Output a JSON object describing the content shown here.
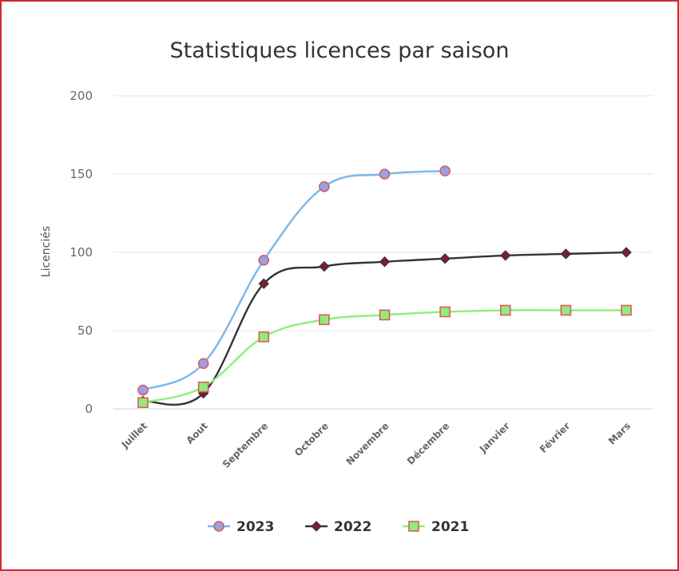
{
  "chart_data": {
    "type": "line",
    "title": "Statistiques licences par saison",
    "ylabel": "Licenciés",
    "xlabel": "",
    "categories": [
      "Juillet",
      "Aout",
      "Septembre",
      "Octobre",
      "Novembre",
      "Décembre",
      "Janvier",
      "Février",
      "Mars"
    ],
    "ylim": [
      0,
      200
    ],
    "yticks": [
      0,
      50,
      100,
      150,
      200
    ],
    "grid": true,
    "legend": "bottom",
    "series": [
      {
        "name": "2023",
        "color": "#7cb5ec",
        "marker": "circle",
        "marker_fill": "#8fa4ea",
        "marker_stroke": "#e05a5a",
        "values": [
          12,
          29,
          95,
          142,
          150,
          152,
          null,
          null,
          null
        ]
      },
      {
        "name": "2022",
        "color": "#333333",
        "marker": "diamond",
        "marker_fill": "#7a1f2b",
        "marker_stroke": "#333333",
        "values": [
          5,
          10,
          80,
          91,
          94,
          96,
          98,
          99,
          100
        ]
      },
      {
        "name": "2021",
        "color": "#90ed7d",
        "marker": "square",
        "marker_fill": "#90ed7d",
        "marker_stroke": "#e05a5a",
        "values": [
          4,
          14,
          46,
          57,
          60,
          62,
          63,
          63,
          63
        ]
      }
    ]
  }
}
